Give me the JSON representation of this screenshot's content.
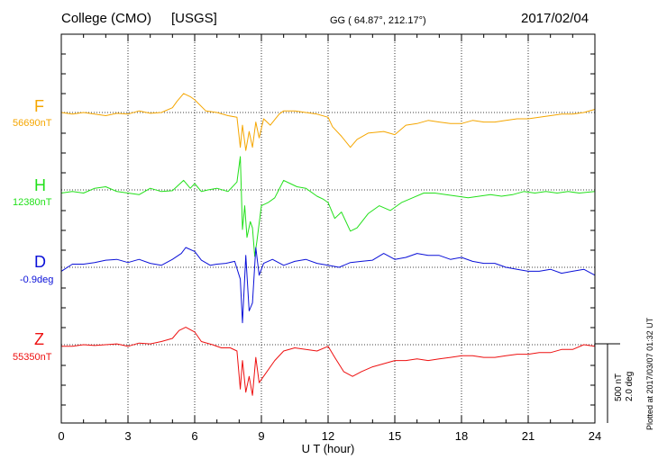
{
  "header": {
    "station": "College (CMO)",
    "network": "[USGS]",
    "coords": "GG ( 64.87°, 212.17°)",
    "date": "2017/02/04"
  },
  "plotted_note": "Plotted at 2017/03/07 01:32 UT",
  "scale_bar": {
    "nt_label": "500 nT",
    "deg_label": "2.0 deg"
  },
  "chart_data": {
    "type": "line",
    "title": "College (CMO)  [USGS]",
    "xlabel": "U T (hour)",
    "xlim": [
      0,
      24
    ],
    "xticks": [
      0,
      3,
      6,
      9,
      12,
      15,
      18,
      21,
      24
    ],
    "grid": true,
    "series": [
      {
        "name": "F",
        "baseline_label": "56690nT",
        "color": "#f5a600",
        "points": [
          [
            0,
            0
          ],
          [
            0.5,
            -10
          ],
          [
            1,
            0
          ],
          [
            1.5,
            -10
          ],
          [
            2,
            -20
          ],
          [
            2.5,
            -5
          ],
          [
            3,
            -10
          ],
          [
            3.5,
            10
          ],
          [
            4,
            -5
          ],
          [
            4.5,
            0
          ],
          [
            5,
            30
          ],
          [
            5.2,
            70
          ],
          [
            5.5,
            120
          ],
          [
            5.8,
            100
          ],
          [
            6,
            80
          ],
          [
            6.5,
            10
          ],
          [
            7,
            0
          ],
          [
            7.5,
            -20
          ],
          [
            7.9,
            -30
          ],
          [
            8.05,
            -220
          ],
          [
            8.15,
            -80
          ],
          [
            8.3,
            -240
          ],
          [
            8.45,
            -120
          ],
          [
            8.6,
            -220
          ],
          [
            8.75,
            -60
          ],
          [
            8.9,
            -160
          ],
          [
            9.1,
            -40
          ],
          [
            9.4,
            -80
          ],
          [
            9.8,
            -10
          ],
          [
            10,
            10
          ],
          [
            10.5,
            10
          ],
          [
            11,
            0
          ],
          [
            11.5,
            -10
          ],
          [
            12,
            -30
          ],
          [
            12.2,
            -90
          ],
          [
            12.6,
            -150
          ],
          [
            13,
            -220
          ],
          [
            13.3,
            -170
          ],
          [
            13.8,
            -130
          ],
          [
            14.5,
            -120
          ],
          [
            15,
            -140
          ],
          [
            15.5,
            -80
          ],
          [
            16,
            -70
          ],
          [
            16.5,
            -50
          ],
          [
            17,
            -60
          ],
          [
            17.5,
            -70
          ],
          [
            18,
            -70
          ],
          [
            18.5,
            -50
          ],
          [
            19,
            -60
          ],
          [
            19.5,
            -60
          ],
          [
            20,
            -50
          ],
          [
            20.5,
            -40
          ],
          [
            21,
            -40
          ],
          [
            21.5,
            -30
          ],
          [
            22,
            -20
          ],
          [
            22.5,
            -10
          ],
          [
            23,
            -10
          ],
          [
            23.5,
            0
          ],
          [
            24,
            20
          ]
        ]
      },
      {
        "name": "H",
        "baseline_label": "12380nT",
        "color": "#22e01a",
        "points": [
          [
            0,
            -20
          ],
          [
            0.5,
            -10
          ],
          [
            1,
            -20
          ],
          [
            1.5,
            10
          ],
          [
            2,
            20
          ],
          [
            2.5,
            -10
          ],
          [
            3,
            -20
          ],
          [
            3.5,
            -30
          ],
          [
            4,
            10
          ],
          [
            4.5,
            -10
          ],
          [
            5,
            -5
          ],
          [
            5.5,
            60
          ],
          [
            5.8,
            10
          ],
          [
            6,
            40
          ],
          [
            6.3,
            -10
          ],
          [
            6.6,
            0
          ],
          [
            7,
            10
          ],
          [
            7.5,
            -10
          ],
          [
            7.9,
            50
          ],
          [
            8.05,
            210
          ],
          [
            8.15,
            -250
          ],
          [
            8.25,
            -100
          ],
          [
            8.35,
            -300
          ],
          [
            8.5,
            -200
          ],
          [
            8.6,
            -240
          ],
          [
            8.7,
            -420
          ],
          [
            8.8,
            -320
          ],
          [
            9,
            -100
          ],
          [
            9.3,
            -80
          ],
          [
            9.6,
            -50
          ],
          [
            10,
            60
          ],
          [
            10.3,
            40
          ],
          [
            10.6,
            20
          ],
          [
            11,
            10
          ],
          [
            11.5,
            -40
          ],
          [
            11.8,
            -60
          ],
          [
            12,
            -80
          ],
          [
            12.3,
            -180
          ],
          [
            12.6,
            -140
          ],
          [
            13,
            -260
          ],
          [
            13.3,
            -240
          ],
          [
            13.8,
            -150
          ],
          [
            14.3,
            -100
          ],
          [
            14.8,
            -130
          ],
          [
            15.3,
            -80
          ],
          [
            15.8,
            -50
          ],
          [
            16.3,
            -20
          ],
          [
            16.8,
            -20
          ],
          [
            17.3,
            -30
          ],
          [
            17.8,
            -40
          ],
          [
            18.3,
            -50
          ],
          [
            18.8,
            -40
          ],
          [
            19.3,
            -30
          ],
          [
            19.8,
            -40
          ],
          [
            20.3,
            -30
          ],
          [
            20.8,
            -10
          ],
          [
            21.3,
            -20
          ],
          [
            21.8,
            -10
          ],
          [
            22.3,
            -20
          ],
          [
            22.8,
            -10
          ],
          [
            23.3,
            -20
          ],
          [
            24,
            -10
          ]
        ]
      },
      {
        "name": "D",
        "baseline_label": "-0.9deg",
        "color": "#0a10d8",
        "points": [
          [
            0,
            -0.1
          ],
          [
            0.5,
            0.08
          ],
          [
            1,
            0.08
          ],
          [
            1.5,
            0.12
          ],
          [
            2,
            0.18
          ],
          [
            2.5,
            0.2
          ],
          [
            3,
            0.12
          ],
          [
            3.5,
            0.2
          ],
          [
            4,
            0.1
          ],
          [
            4.5,
            0.05
          ],
          [
            5,
            0.2
          ],
          [
            5.4,
            0.35
          ],
          [
            5.6,
            0.5
          ],
          [
            6,
            0.4
          ],
          [
            6.3,
            0.18
          ],
          [
            6.7,
            0.05
          ],
          [
            7,
            0.08
          ],
          [
            7.4,
            0.1
          ],
          [
            7.8,
            0.15
          ],
          [
            8.05,
            -0.3
          ],
          [
            8.15,
            -1.4
          ],
          [
            8.3,
            0.3
          ],
          [
            8.45,
            -1.1
          ],
          [
            8.6,
            -0.9
          ],
          [
            8.75,
            0.5
          ],
          [
            8.9,
            -0.2
          ],
          [
            9.1,
            0.1
          ],
          [
            9.5,
            0.2
          ],
          [
            10,
            0.05
          ],
          [
            10.5,
            0.15
          ],
          [
            11,
            0.2
          ],
          [
            11.5,
            0.1
          ],
          [
            12,
            0.05
          ],
          [
            12.5,
            0.0
          ],
          [
            13,
            0.12
          ],
          [
            13.5,
            0.15
          ],
          [
            14,
            0.18
          ],
          [
            14.5,
            0.35
          ],
          [
            15,
            0.2
          ],
          [
            15.5,
            0.25
          ],
          [
            16,
            0.35
          ],
          [
            16.5,
            0.3
          ],
          [
            17,
            0.3
          ],
          [
            17.5,
            0.2
          ],
          [
            18,
            0.25
          ],
          [
            18.5,
            0.15
          ],
          [
            19,
            0.1
          ],
          [
            19.5,
            0.1
          ],
          [
            20,
            0.0
          ],
          [
            20.5,
            -0.05
          ],
          [
            21,
            -0.1
          ],
          [
            21.5,
            -0.1
          ],
          [
            22,
            -0.05
          ],
          [
            22.5,
            -0.15
          ],
          [
            23,
            -0.1
          ],
          [
            23.5,
            -0.05
          ],
          [
            24,
            -0.2
          ]
        ]
      },
      {
        "name": "Z",
        "baseline_label": "55350nT",
        "color": "#ee1010",
        "points": [
          [
            0,
            -10
          ],
          [
            0.5,
            -10
          ],
          [
            1,
            0
          ],
          [
            1.5,
            -5
          ],
          [
            2,
            0
          ],
          [
            2.5,
            5
          ],
          [
            3,
            -10
          ],
          [
            3.5,
            10
          ],
          [
            4,
            5
          ],
          [
            4.5,
            20
          ],
          [
            5,
            40
          ],
          [
            5.3,
            90
          ],
          [
            5.6,
            110
          ],
          [
            6,
            80
          ],
          [
            6.3,
            20
          ],
          [
            6.8,
            0
          ],
          [
            7.2,
            -20
          ],
          [
            7.6,
            -20
          ],
          [
            7.9,
            -40
          ],
          [
            8.05,
            -280
          ],
          [
            8.15,
            -100
          ],
          [
            8.3,
            -300
          ],
          [
            8.45,
            -200
          ],
          [
            8.6,
            -320
          ],
          [
            8.75,
            -80
          ],
          [
            8.9,
            -240
          ],
          [
            9.2,
            -180
          ],
          [
            9.6,
            -100
          ],
          [
            10,
            -40
          ],
          [
            10.5,
            -20
          ],
          [
            11,
            -30
          ],
          [
            11.5,
            -40
          ],
          [
            12,
            -10
          ],
          [
            12.3,
            -80
          ],
          [
            12.7,
            -170
          ],
          [
            13.1,
            -200
          ],
          [
            13.5,
            -170
          ],
          [
            14,
            -140
          ],
          [
            14.5,
            -120
          ],
          [
            15,
            -100
          ],
          [
            15.5,
            -100
          ],
          [
            16,
            -90
          ],
          [
            16.5,
            -100
          ],
          [
            17,
            -90
          ],
          [
            17.5,
            -80
          ],
          [
            18,
            -70
          ],
          [
            18.5,
            -70
          ],
          [
            19,
            -80
          ],
          [
            19.5,
            -80
          ],
          [
            20,
            -70
          ],
          [
            20.5,
            -60
          ],
          [
            21,
            -60
          ],
          [
            21.5,
            -50
          ],
          [
            22,
            -50
          ],
          [
            22.5,
            -30
          ],
          [
            23,
            -30
          ],
          [
            23.5,
            0
          ],
          [
            24,
            -10
          ]
        ]
      }
    ]
  }
}
